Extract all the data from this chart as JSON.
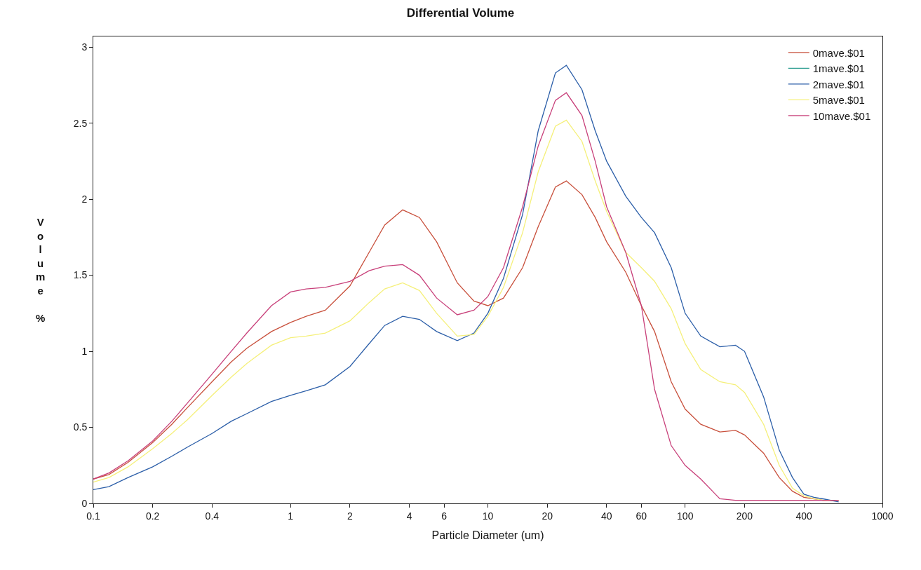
{
  "chart_data": {
    "type": "line",
    "title": "Differential Volume",
    "xlabel": "Particle Diameter (um)",
    "ylabel": "Volume %",
    "log": "x",
    "legend": "top right",
    "marker": "none",
    "line_style": "solid",
    "xlim": [
      0.1,
      1000
    ],
    "xticks": [
      0.1,
      0.2,
      0.4,
      1,
      2,
      4,
      6,
      10,
      20,
      40,
      60,
      100,
      200,
      400,
      1000
    ],
    "ylim": [
      0,
      3.07
    ],
    "yticks": [
      0,
      0.5,
      1,
      1.5,
      2,
      2.5,
      3
    ],
    "x": [
      0.1,
      0.12,
      0.15,
      0.2,
      0.25,
      0.3,
      0.4,
      0.5,
      0.6,
      0.8,
      1,
      1.2,
      1.5,
      2,
      2.5,
      3,
      3.7,
      4.5,
      5.5,
      7,
      8.5,
      10,
      12,
      15,
      18,
      22,
      25,
      30,
      35,
      40,
      50,
      60,
      70,
      85,
      100,
      120,
      150,
      180,
      200,
      250,
      300,
      350,
      400,
      450,
      500,
      600
    ],
    "series": [
      {
        "name": "0mave.$01",
        "color": "#c8503c",
        "values": [
          0.16,
          0.19,
          0.27,
          0.4,
          0.52,
          0.63,
          0.8,
          0.93,
          1.02,
          1.13,
          1.19,
          1.23,
          1.27,
          1.43,
          1.65,
          1.83,
          1.93,
          1.88,
          1.72,
          1.45,
          1.33,
          1.3,
          1.35,
          1.55,
          1.82,
          2.08,
          2.12,
          2.03,
          1.88,
          1.72,
          1.52,
          1.3,
          1.13,
          0.8,
          0.62,
          0.52,
          0.47,
          0.48,
          0.45,
          0.33,
          0.17,
          0.08,
          0.04,
          0.03,
          0.02,
          0.02
        ]
      },
      {
        "name": "1mave.$01",
        "color": "#2a9d8f",
        "values": [
          null,
          null,
          null,
          null,
          null,
          null,
          null,
          null,
          null,
          null,
          null,
          null,
          null,
          null,
          null,
          null,
          null,
          null,
          null,
          null,
          null,
          null,
          null,
          null,
          null,
          null,
          null,
          null,
          null,
          null,
          null,
          null,
          null,
          null,
          null,
          null,
          null,
          null,
          null,
          null,
          null,
          null,
          null,
          null,
          null,
          null
        ]
      },
      {
        "name": "2mave.$01",
        "color": "#2b5ea8",
        "values": [
          0.09,
          0.11,
          0.17,
          0.24,
          0.31,
          0.37,
          0.46,
          0.54,
          0.59,
          0.67,
          0.71,
          0.74,
          0.78,
          0.9,
          1.05,
          1.17,
          1.23,
          1.21,
          1.13,
          1.07,
          1.12,
          1.25,
          1.48,
          1.9,
          2.45,
          2.83,
          2.88,
          2.72,
          2.45,
          2.25,
          2.02,
          1.88,
          1.78,
          1.55,
          1.25,
          1.1,
          1.03,
          1.04,
          1.0,
          0.7,
          0.35,
          0.17,
          0.06,
          0.04,
          0.03,
          0.01
        ]
      },
      {
        "name": "5mave.$01",
        "color": "#f5f07a",
        "values": [
          0.14,
          0.17,
          0.24,
          0.36,
          0.46,
          0.55,
          0.71,
          0.83,
          0.92,
          1.04,
          1.09,
          1.1,
          1.12,
          1.2,
          1.32,
          1.41,
          1.45,
          1.4,
          1.25,
          1.1,
          1.11,
          1.23,
          1.42,
          1.78,
          2.18,
          2.48,
          2.52,
          2.38,
          2.12,
          1.92,
          1.65,
          1.55,
          1.46,
          1.28,
          1.05,
          0.88,
          0.8,
          0.78,
          0.73,
          0.52,
          0.25,
          0.1,
          0.05,
          0.03,
          0.02,
          0.02
        ]
      },
      {
        "name": "10mave.$01",
        "color": "#c8407a",
        "values": [
          0.16,
          0.2,
          0.28,
          0.41,
          0.54,
          0.66,
          0.85,
          1.0,
          1.12,
          1.3,
          1.39,
          1.41,
          1.42,
          1.46,
          1.53,
          1.56,
          1.57,
          1.5,
          1.35,
          1.24,
          1.27,
          1.36,
          1.55,
          1.95,
          2.35,
          2.65,
          2.7,
          2.55,
          2.25,
          1.95,
          1.65,
          1.3,
          0.75,
          0.38,
          0.25,
          0.16,
          0.03,
          0.02,
          0.02,
          0.02,
          0.02,
          0.02,
          0.02,
          0.02,
          0.02,
          0.02
        ]
      }
    ]
  }
}
